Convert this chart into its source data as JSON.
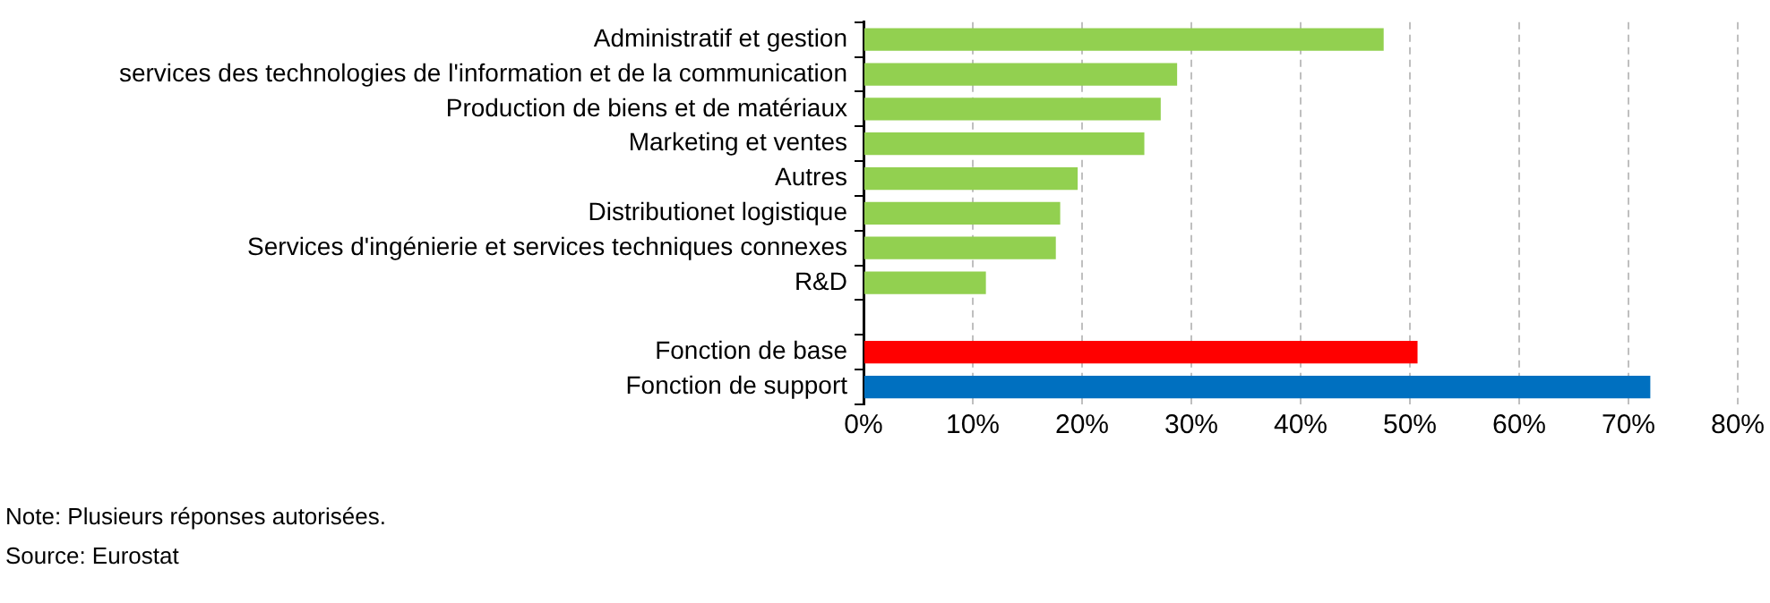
{
  "chart_data": {
    "type": "bar",
    "orientation": "horizontal",
    "categories": [
      "Administratif et gestion",
      "services des technologies de l'information et de la communication",
      "Production de biens et de matériaux",
      "Marketing et ventes",
      "Autres",
      "Distributionet logistique",
      "Services d'ingénierie et services techniques connexes",
      "R&D",
      null,
      "Fonction de base",
      "Fonction de support"
    ],
    "values": [
      47.6,
      28.7,
      27.2,
      25.7,
      19.6,
      18.0,
      17.6,
      11.2,
      null,
      50.7,
      72.0
    ],
    "colors": [
      "#92d050",
      "#92d050",
      "#92d050",
      "#92d050",
      "#92d050",
      "#92d050",
      "#92d050",
      "#92d050",
      "#92d050",
      "#ff0000",
      "#0070c0"
    ],
    "xlim": [
      0,
      80
    ],
    "xticks": [
      {
        "value": 0,
        "label": "0%"
      },
      {
        "value": 10,
        "label": "10%"
      },
      {
        "value": 20,
        "label": "20%"
      },
      {
        "value": 30,
        "label": "30%"
      },
      {
        "value": 40,
        "label": "40%"
      },
      {
        "value": 50,
        "label": "50%"
      },
      {
        "value": 60,
        "label": "60%"
      },
      {
        "value": 70,
        "label": "70%"
      },
      {
        "value": 80,
        "label": "80%"
      }
    ],
    "grid": "x",
    "legend": false,
    "annotations": [
      "Note: Plusieurs réponses autorisées.",
      "Source: Eurostat"
    ]
  }
}
